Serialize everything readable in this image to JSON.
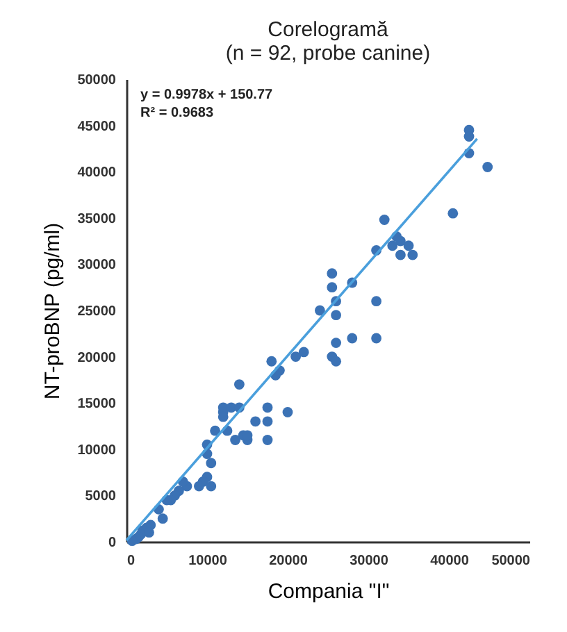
{
  "chart_data": {
    "type": "scatter",
    "title": "Corelogramă",
    "subtitle": "(n = 92, probe canine)",
    "xlabel": "Compania \"I\"",
    "ylabel": "NT-proBNP (pg/ml)",
    "annotations": [
      "y = 0.9978x + 150.77",
      "R² = 0.9683"
    ],
    "xlim": [
      0,
      50000
    ],
    "xticks": [
      0,
      10000,
      20000,
      30000,
      40000,
      50000
    ],
    "ylim": [
      0,
      50000
    ],
    "yticks": [
      0,
      5000,
      10000,
      15000,
      20000,
      25000,
      30000,
      35000,
      40000,
      45000,
      50000
    ],
    "grid": false,
    "marker": "circle",
    "series": [
      {
        "color": "#3b72b5",
        "x": [
          42500,
          42500,
          42500,
          44800,
          40500,
          33500,
          34000,
          33000,
          35000,
          35500,
          32000,
          31000,
          34000,
          31000,
          31000,
          28000,
          28000,
          26000,
          25500,
          25500,
          26000,
          24000,
          26000,
          25500,
          26000,
          22000,
          21000,
          18000,
          19000,
          18500,
          14000,
          17500,
          17500,
          17500,
          20000,
          16000,
          15000,
          14500,
          13500,
          12000,
          12000,
          12000,
          12500,
          13000,
          14000,
          15000,
          11000,
          10000,
          10000,
          10500,
          10000,
          9500,
          10500,
          9000,
          7500,
          7000,
          6500,
          6000,
          5500,
          5000,
          4000,
          4500,
          3000,
          2500,
          2000,
          1800,
          1500,
          1200,
          2800,
          700
        ],
        "values": [
          44500,
          43800,
          42000,
          40500,
          35500,
          33000,
          32500,
          32000,
          32000,
          31000,
          34800,
          31500,
          31000,
          26000,
          22000,
          28000,
          22000,
          26000,
          29000,
          27500,
          24500,
          25000,
          21500,
          20000,
          19500,
          20500,
          20000,
          19500,
          18500,
          18000,
          17000,
          14500,
          13000,
          11000,
          14000,
          13000,
          11000,
          11500,
          11000,
          14500,
          14000,
          13500,
          12000,
          14500,
          14500,
          11500,
          12000,
          10500,
          9500,
          8500,
          7000,
          6500,
          6000,
          6000,
          6000,
          6500,
          5500,
          5000,
          4500,
          4500,
          3500,
          2500,
          1800,
          1500,
          1200,
          800,
          500,
          300,
          1000,
          100
        ]
      },
      {
        "type": "line",
        "color": "#4a9fdc",
        "marker": "none",
        "line_style": "solid",
        "x": [
          0,
          43500
        ],
        "values": [
          150,
          43550
        ]
      }
    ]
  }
}
